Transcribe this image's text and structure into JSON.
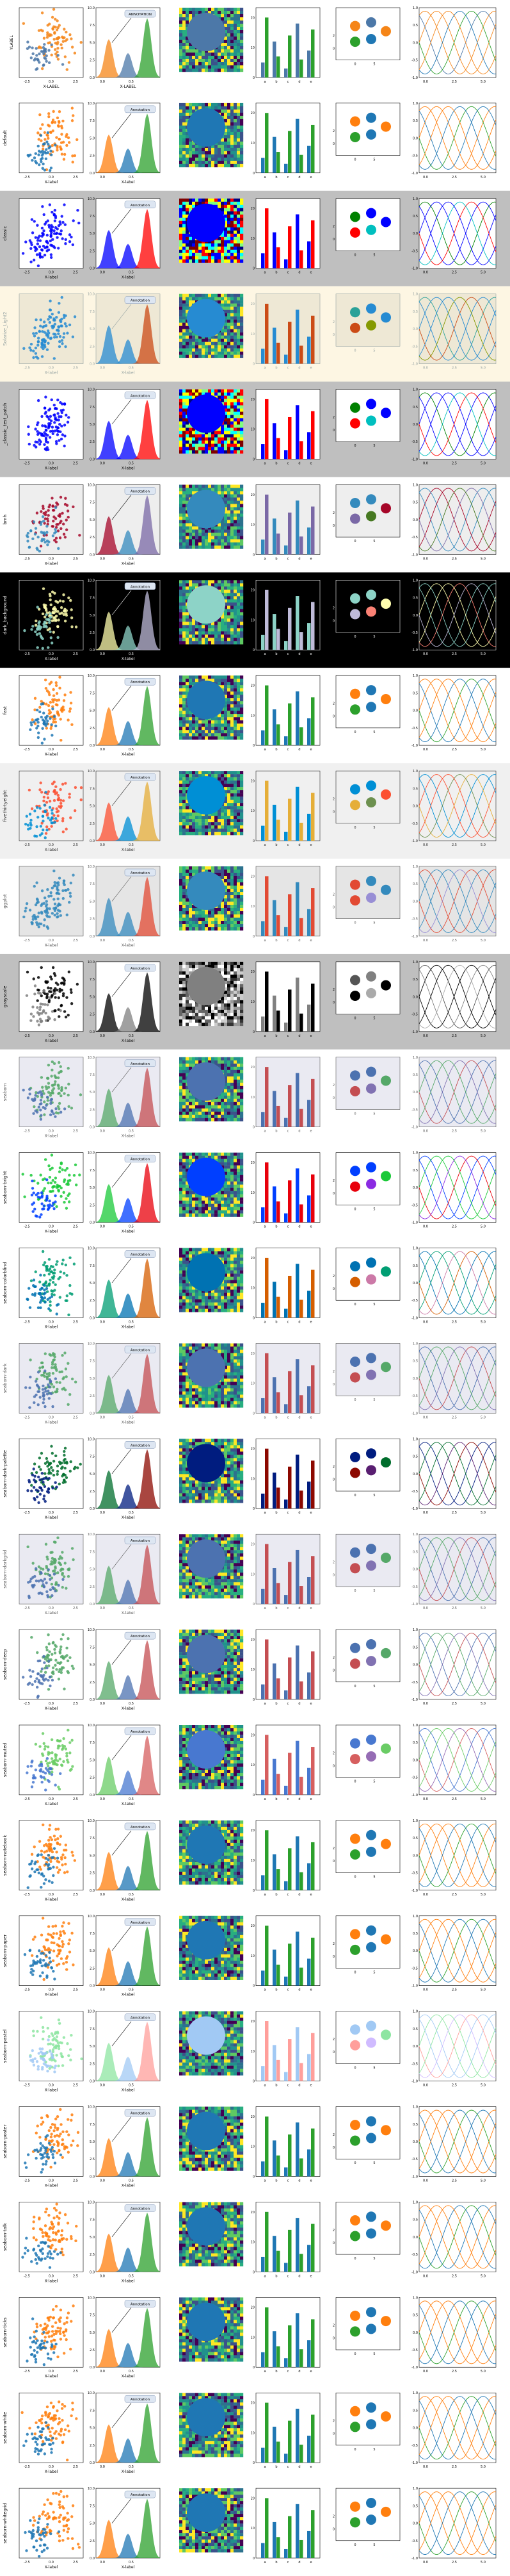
{
  "chart_data": {
    "type": "figure-grid",
    "note_text": "",
    "rows": [
      {
        "style": "",
        "ylabel": "YLABEL",
        "xlabel": "X-LABEL",
        "annotation": "ANNOTATION",
        "bg": "#ffffff",
        "fig": "#ffffff",
        "fg": "#000000",
        "c": [
          "#f58518",
          "#f58518",
          "#4c78a8",
          "#2ca02c",
          "#1f77b4"
        ]
      },
      {
        "style": "default",
        "ylabel": "",
        "xlabel": "X-label",
        "annotation": "Annotation",
        "bg": "#ffffff",
        "fig": "#ffffff",
        "fg": "#000000",
        "c": [
          "#ff7f0e",
          "#ff7f0e",
          "#1f77b4",
          "#2ca02c",
          "#1f77b4"
        ]
      },
      {
        "style": "classic",
        "ylabel": "",
        "xlabel": "X-label",
        "annotation": "Annotation",
        "bg": "#ffffff",
        "fig": "#bfbfbf",
        "fg": "#000000",
        "c": [
          "#0000ff",
          "#008000",
          "#0000ff",
          "#ff0000",
          "#00bfbf"
        ]
      },
      {
        "style": "Solarize_Light2",
        "ylabel": "",
        "xlabel": "X-label",
        "annotation": "Annotation",
        "bg": "#eee8d5",
        "fig": "#fdf6e3",
        "fg": "#93a1a1",
        "c": [
          "#268bd2",
          "#2aa198",
          "#268bd2",
          "#cb4b16",
          "#859900"
        ]
      },
      {
        "style": "_classic_test_patch",
        "ylabel": "",
        "xlabel": "X-label",
        "annotation": "Annotation",
        "bg": "#ffffff",
        "fig": "#bfbfbf",
        "fg": "#000000",
        "c": [
          "#0000ff",
          "#008000",
          "#0000ff",
          "#ff0000",
          "#00bfbf"
        ]
      },
      {
        "style": "bmh",
        "ylabel": "",
        "xlabel": "X-label",
        "annotation": "Annotation",
        "bg": "#eeeeee",
        "fig": "#ffffff",
        "fg": "#000000",
        "c": [
          "#a60628",
          "#348abd",
          "#348abd",
          "#7a68a6",
          "#467821"
        ]
      },
      {
        "style": "dark_background",
        "ylabel": "",
        "xlabel": "X-label",
        "annotation": "Annotation",
        "bg": "#000000",
        "fig": "#000000",
        "fg": "#ffffff",
        "c": [
          "#fffeae",
          "#8dd3c7",
          "#8dd3c7",
          "#bfbbd9",
          "#fa8174"
        ]
      },
      {
        "style": "fast",
        "ylabel": "",
        "xlabel": "X-label",
        "annotation": "Annotation",
        "bg": "#ffffff",
        "fig": "#ffffff",
        "fg": "#000000",
        "c": [
          "#ff7f0e",
          "#ff7f0e",
          "#1f77b4",
          "#2ca02c",
          "#1f77b4"
        ]
      },
      {
        "style": "fivethirtyeight",
        "ylabel": "",
        "xlabel": "X-label",
        "annotation": "Annotation",
        "bg": "#f0f0f0",
        "fig": "#f0f0f0",
        "fg": "#222222",
        "c": [
          "#fc4f30",
          "#008fd5",
          "#008fd5",
          "#e5ae38",
          "#6d904f"
        ]
      },
      {
        "style": "ggplot",
        "ylabel": "",
        "xlabel": "X-label",
        "annotation": "Annotation",
        "bg": "#e5e5e5",
        "fig": "#ffffff",
        "fg": "#555555",
        "c": [
          "#348abd",
          "#e24a33",
          "#348abd",
          "#e24a33",
          "#988ed5"
        ]
      },
      {
        "style": "grayscale",
        "ylabel": "",
        "xlabel": "X-label",
        "annotation": "Annotation",
        "bg": "#ffffff",
        "fig": "#bfbfbf",
        "fg": "#000000",
        "c": [
          "#000000",
          "#555555",
          "#808080",
          "#000000",
          "#aaaaaa"
        ]
      },
      {
        "style": "seaborn",
        "ylabel": "",
        "xlabel": "X-label",
        "annotation": "Annotation",
        "bg": "#eaeaf2",
        "fig": "#ffffff",
        "fg": "#555555",
        "c": [
          "#55a868",
          "#4c72b0",
          "#4c72b0",
          "#c44e52",
          "#8172b2"
        ]
      },
      {
        "style": "seaborn-bright",
        "ylabel": "",
        "xlabel": "X-label",
        "annotation": "Annotation",
        "bg": "#ffffff",
        "fig": "#ffffff",
        "fg": "#000000",
        "c": [
          "#1ac938",
          "#003fff",
          "#003fff",
          "#e8000b",
          "#8b2be2"
        ]
      },
      {
        "style": "seaborn-colorblind",
        "ylabel": "",
        "xlabel": "X-label",
        "annotation": "Annotation",
        "bg": "#ffffff",
        "fig": "#ffffff",
        "fg": "#000000",
        "c": [
          "#009e73",
          "#0072b2",
          "#0072b2",
          "#d55e00",
          "#cc79a7"
        ]
      },
      {
        "style": "seaborn-dark",
        "ylabel": "",
        "xlabel": "X-label",
        "annotation": "Annotation",
        "bg": "#eaeaf2",
        "fig": "#ffffff",
        "fg": "#555555",
        "c": [
          "#55a868",
          "#4c72b0",
          "#4c72b0",
          "#c44e52",
          "#8172b2"
        ]
      },
      {
        "style": "seaborn-dark-palette",
        "ylabel": "",
        "xlabel": "X-label",
        "annotation": "Annotation",
        "bg": "#ffffff",
        "fig": "#ffffff",
        "fg": "#000000",
        "c": [
          "#006d2c",
          "#001c7f",
          "#001c7f",
          "#8c0800",
          "#591e71"
        ]
      },
      {
        "style": "seaborn-darkgrid",
        "ylabel": "",
        "xlabel": "X-label",
        "annotation": "Annotation",
        "bg": "#eaeaf2",
        "fig": "#ffffff",
        "fg": "#555555",
        "c": [
          "#55a868",
          "#4c72b0",
          "#4c72b0",
          "#c44e52",
          "#8172b2"
        ]
      },
      {
        "style": "seaborn-deep",
        "ylabel": "",
        "xlabel": "X-label",
        "annotation": "Annotation",
        "bg": "#ffffff",
        "fig": "#ffffff",
        "fg": "#000000",
        "c": [
          "#55a868",
          "#4c72b0",
          "#4c72b0",
          "#c44e52",
          "#8172b2"
        ]
      },
      {
        "style": "seaborn-muted",
        "ylabel": "",
        "xlabel": "X-label",
        "annotation": "Annotation",
        "bg": "#ffffff",
        "fig": "#ffffff",
        "fg": "#000000",
        "c": [
          "#6acc65",
          "#4878d0",
          "#4878d0",
          "#d65f5f",
          "#956cb4"
        ]
      },
      {
        "style": "seaborn-notebook",
        "ylabel": "",
        "xlabel": "X-label",
        "annotation": "Annotation",
        "bg": "#ffffff",
        "fig": "#ffffff",
        "fg": "#000000",
        "c": [
          "#ff7f0e",
          "#ff7f0e",
          "#1f77b4",
          "#2ca02c",
          "#1f77b4"
        ]
      },
      {
        "style": "seaborn-paper",
        "ylabel": "",
        "xlabel": "X-label",
        "annotation": "Annotation",
        "bg": "#ffffff",
        "fig": "#ffffff",
        "fg": "#000000",
        "c": [
          "#ff7f0e",
          "#ff7f0e",
          "#1f77b4",
          "#2ca02c",
          "#1f77b4"
        ]
      },
      {
        "style": "seaborn-pastel",
        "ylabel": "",
        "xlabel": "X-label",
        "annotation": "Annotation",
        "bg": "#ffffff",
        "fig": "#ffffff",
        "fg": "#000000",
        "c": [
          "#8de5a1",
          "#a1c9f4",
          "#a1c9f4",
          "#ff9f9b",
          "#d0bbff"
        ]
      },
      {
        "style": "seaborn-poster",
        "ylabel": "",
        "xlabel": "X-label",
        "annotation": "Annotation",
        "bg": "#ffffff",
        "fig": "#ffffff",
        "fg": "#000000",
        "c": [
          "#ff7f0e",
          "#ff7f0e",
          "#1f77b4",
          "#2ca02c",
          "#1f77b4"
        ]
      },
      {
        "style": "seaborn-talk",
        "ylabel": "",
        "xlabel": "X-label",
        "annotation": "Annotation",
        "bg": "#ffffff",
        "fig": "#ffffff",
        "fg": "#000000",
        "c": [
          "#ff7f0e",
          "#ff7f0e",
          "#1f77b4",
          "#2ca02c",
          "#1f77b4"
        ]
      },
      {
        "style": "seaborn-ticks",
        "ylabel": "",
        "xlabel": "X-label",
        "annotation": "Annotation",
        "bg": "#ffffff",
        "fig": "#ffffff",
        "fg": "#000000",
        "c": [
          "#ff7f0e",
          "#ff7f0e",
          "#1f77b4",
          "#2ca02c",
          "#1f77b4"
        ]
      },
      {
        "style": "seaborn-white",
        "ylabel": "",
        "xlabel": "X-label",
        "annotation": "Annotation",
        "bg": "#ffffff",
        "fig": "#ffffff",
        "fg": "#000000",
        "c": [
          "#ff7f0e",
          "#ff7f0e",
          "#1f77b4",
          "#2ca02c",
          "#1f77b4"
        ]
      },
      {
        "style": "seaborn-whitegrid",
        "ylabel": "",
        "xlabel": "X-label",
        "annotation": "Annotation",
        "bg": "#ffffff",
        "fig": "#ffffff",
        "fg": "#000000",
        "c": [
          "#ff7f0e",
          "#ff7f0e",
          "#1f77b4",
          "#2ca02c",
          "#1f77b4"
        ]
      }
    ],
    "panels": {
      "scatter": {
        "type": "scatter",
        "xlim": [
          -2.5,
          2.5
        ],
        "ylim": [
          -2.5,
          2.5
        ],
        "xticks": [
          "-2.5",
          "0.0",
          "2.5"
        ]
      },
      "histogram": {
        "type": "area",
        "xlim": [
          0,
          1
        ],
        "ylim": [
          0,
          10
        ],
        "yticks": [
          "0.0",
          "2.5",
          "5.0",
          "7.5",
          "10.0"
        ],
        "xticks": [
          "0.0",
          "0.5"
        ]
      },
      "image": {
        "type": "heatmap",
        "grid": [
          20,
          20
        ]
      },
      "bars": {
        "type": "bar",
        "categories": [
          "a",
          "b",
          "c",
          "d",
          "e"
        ],
        "series": [
          {
            "values": [
              5,
              12,
              3,
              18,
              9
            ]
          },
          {
            "values": [
              20,
              7,
              14,
              6,
              16
            ]
          }
        ],
        "yticks": [
          "0",
          "10",
          "20"
        ]
      },
      "circles": {
        "type": "scatter",
        "xticks": [
          "0",
          "5"
        ],
        "yticks": [
          "0",
          "2"
        ]
      },
      "sines": {
        "type": "line",
        "xlim": [
          0,
          3.5
        ],
        "ylim": [
          -1,
          1
        ],
        "xticks": [
          "0.0",
          "2.5",
          "5.0"
        ],
        "yticks": [
          "-1.0",
          "-0.5",
          "0.0",
          "0.5",
          "1.0"
        ]
      }
    }
  }
}
